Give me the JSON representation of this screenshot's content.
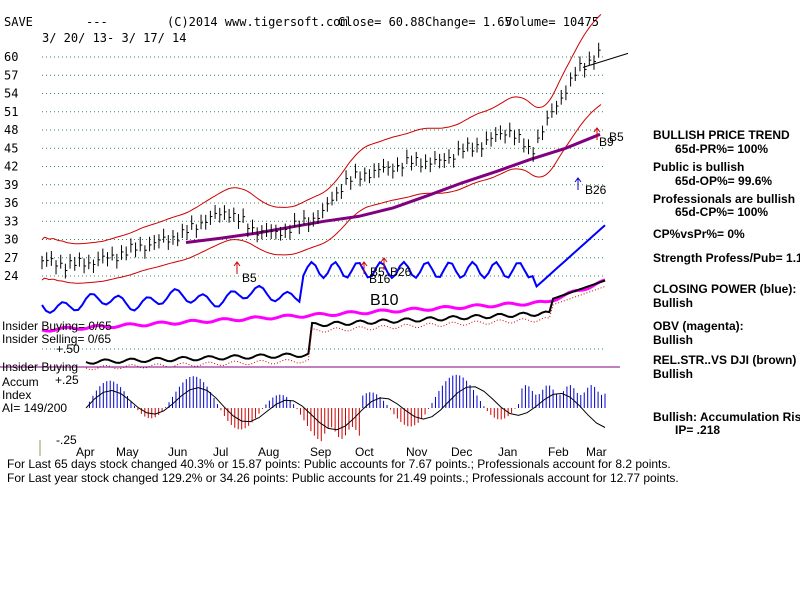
{
  "header": {
    "ticker": "SAVE",
    "dashes": "---",
    "site": "(C)2014 www.tigersoft.com",
    "close": "Close=  60.88",
    "change": "Change= 1.65",
    "volume": "Volume= 10475",
    "date_range": "3/ 20/ 13- 3/ 17/ 14"
  },
  "chart_data": {
    "type": "line",
    "title": "SAVE",
    "price_ticks": [
      "60",
      "57",
      "54",
      "51",
      "48",
      "45",
      "42",
      "39",
      "36",
      "33",
      "30",
      "27",
      "24"
    ],
    "x_ticks": [
      "Apr",
      "May",
      "Jun",
      "Jul",
      "Aug",
      "Sep",
      "Oct",
      "Nov",
      "Dec",
      "Jan",
      "Feb",
      "Mar"
    ],
    "price": {
      "x": [
        "3/20",
        "4/1",
        "4/15",
        "5/1",
        "5/15",
        "6/1",
        "6/15",
        "7/1",
        "7/15",
        "8/1",
        "8/15",
        "9/1",
        "9/15",
        "10/1",
        "10/15",
        "11/1",
        "11/15",
        "12/1",
        "12/15",
        "1/2",
        "1/15",
        "2/1",
        "2/15",
        "3/1",
        "3/17"
      ],
      "close": [
        26.5,
        25.8,
        26.2,
        27.1,
        28.5,
        29.6,
        30.8,
        33.2,
        34.6,
        31.7,
        30.9,
        32.4,
        34.1,
        39.5,
        40.9,
        41.8,
        42.9,
        42.6,
        44.6,
        45.8,
        48.1,
        44.4,
        51.6,
        57.8,
        60.88
      ]
    },
    "ma_line": [
      29.5,
      30.2,
      31.0,
      32.0,
      33.0,
      33.8,
      35.2,
      37.2,
      39.3,
      41.2,
      43.2,
      45.0,
      47.3
    ],
    "signals": [
      "B5",
      "B5",
      "B16",
      "B26",
      "B10",
      "B5",
      "B9",
      "B26"
    ],
    "closing_power_label": "CLOSING POWER (blue):",
    "obv_label": "OBV (magenta):",
    "relstr_label": "REL.STR..VS DJI (brown)",
    "accum_ticks": [
      ".50",
      ".25",
      "-.25"
    ]
  },
  "left_labels": {
    "insider_buying": "Insider Buying= 0/65",
    "insider_selling": "Insider Selling= 0/65",
    "insider_buying2": "Insider Buying",
    "plus50": "+.50",
    "plus25": "+.25",
    "minus25": "-.25",
    "accum": "Accum",
    "index": "Index",
    "ai": "AI= 149/200"
  },
  "right_panel": {
    "trend_title": "BULLISH PRICE TREND",
    "pr": "65d-PR%= 100%",
    "public_title": "Public is bullish",
    "op": "65d-OP%= 99.6%",
    "pros_title": "Professionals are bullish",
    "cp": "65d-CP%= 100%",
    "cpvspr": "CP%vsPr%=  0%",
    "strength": "Strength Profess/Pub= 1.1",
    "closing_power": "CLOSING POWER (blue):",
    "closing_power_val": "Bullish",
    "obv": "OBV (magenta):",
    "obv_val": "Bullish",
    "relstr": "REL.STR..VS DJI (brown)",
    "relstr_val": "Bullish",
    "accum_label": "Bullish: Accumulation Rising",
    "ip": "IP=  .218"
  },
  "signal_labels": {
    "b5_left": "B5",
    "b5_mid": "B5",
    "b16": "B16",
    "b26_mid": "B26",
    "b10": "B10",
    "b5_right": "B5",
    "b9_right": "B9",
    "b26_right": "B26"
  },
  "footer": {
    "line1": "For Last 65 days stock changed  40.3% or  15.87 points:  Public accounts for  7.67 points.;  Professionals account for  8.2 points.",
    "line2": "For Last year stock changed  129.2% or  34.26 points:  Public accounts for  21.49 points.;  Professionals account for  12.77 points."
  },
  "colors": {
    "grid": "#2e8b57",
    "bands": "#cc0000",
    "ma": "#800080",
    "closing_power": "#0000ff",
    "obv": "#ff00ff",
    "relstr": "#000000",
    "accum_pos": "#0000cc",
    "accum_neg": "#cc0000",
    "accum_divider": "#800080"
  }
}
